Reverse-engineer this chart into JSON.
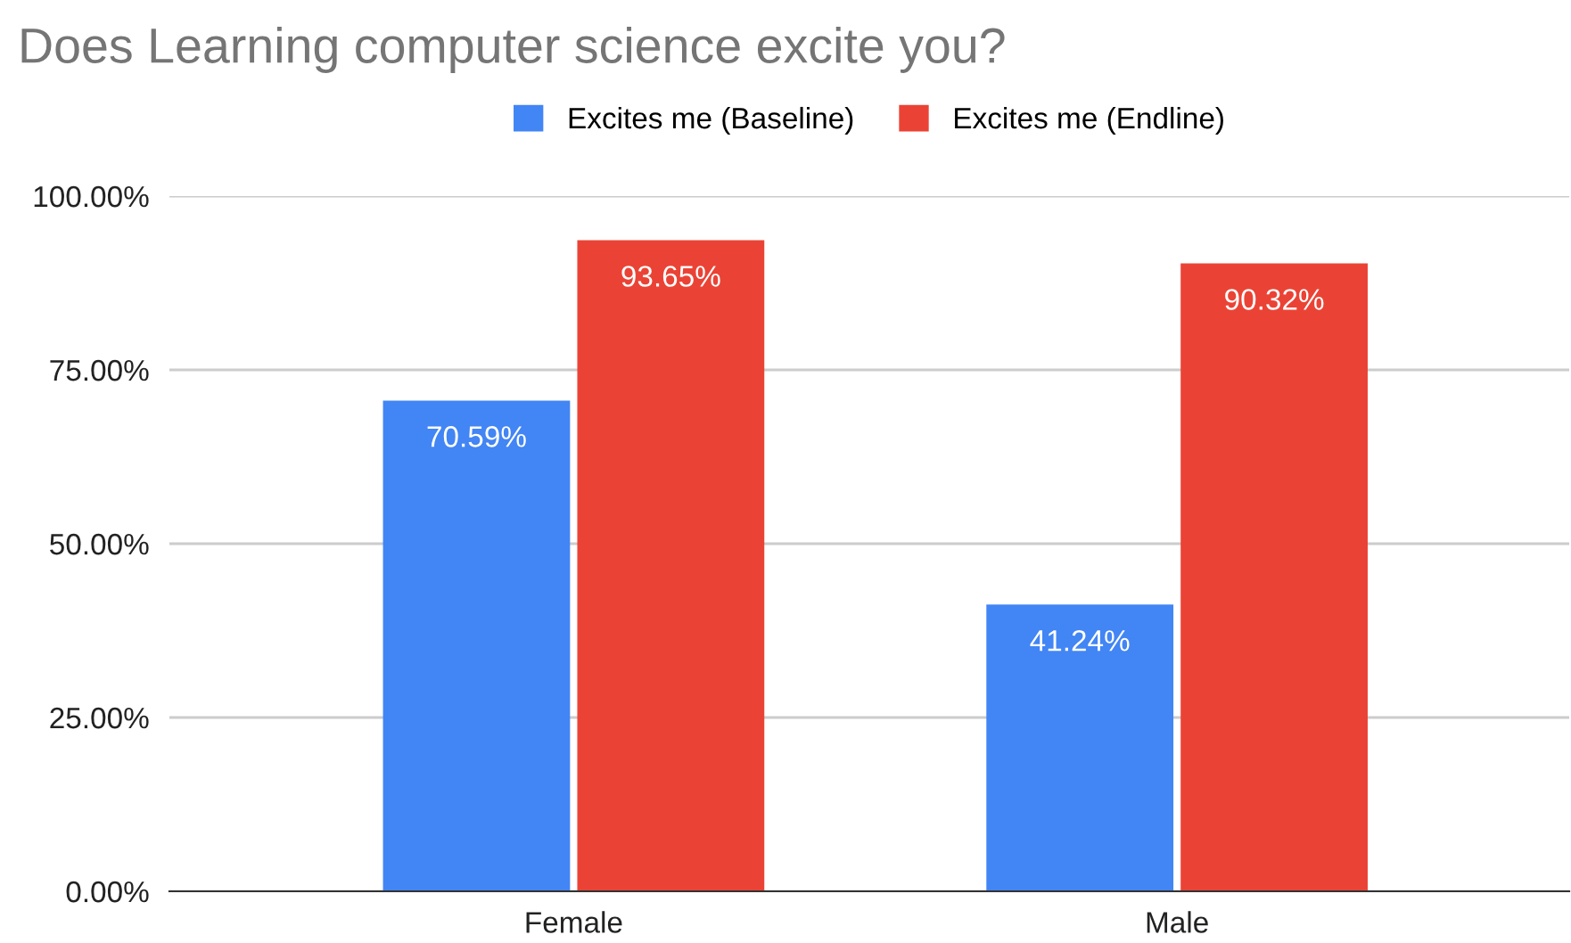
{
  "chart_data": {
    "type": "bar",
    "title": "Does Learning computer science excite you?",
    "categories": [
      "Female",
      "Male"
    ],
    "series": [
      {
        "name": "Excites me (Baseline)",
        "color": "#4285f4",
        "values": [
          70.59,
          41.24
        ],
        "value_labels": [
          "70.59%",
          "41.24%"
        ]
      },
      {
        "name": "Excites me (Endline)",
        "color": "#ea4335",
        "values": [
          93.65,
          90.32
        ],
        "value_labels": [
          "93.65%",
          "90.32%"
        ]
      }
    ],
    "ylim": [
      0,
      100
    ],
    "yticks": [
      {
        "value": 0,
        "label": "0.00%"
      },
      {
        "value": 25,
        "label": "25.00%"
      },
      {
        "value": 50,
        "label": "50.00%"
      },
      {
        "value": 75,
        "label": "75.00%"
      },
      {
        "value": 100,
        "label": "100.00%"
      }
    ],
    "grid": "y",
    "legend": "top"
  }
}
